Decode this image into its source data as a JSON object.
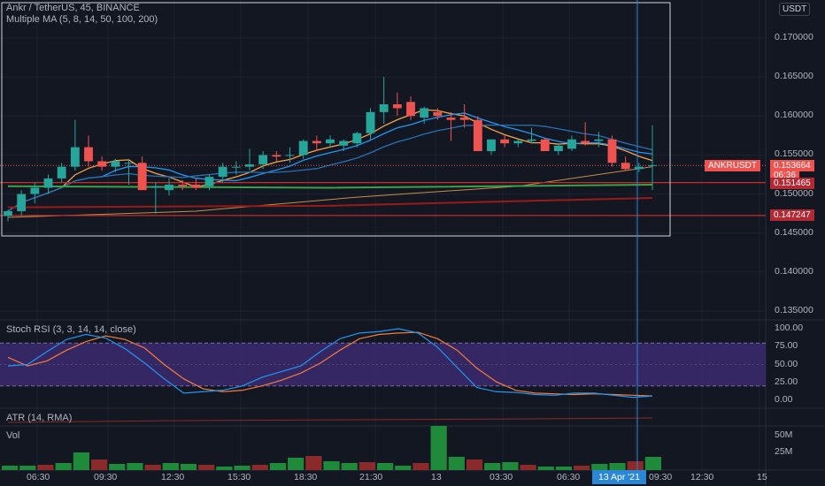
{
  "header": {
    "symbol_line": "Ankr / TetherUS, 45, BINANCE",
    "ma_line": "Multiple MA (5, 8, 14, 50, 100, 200)",
    "currency_btn": "USDT"
  },
  "price_axis": [
    "0.170000",
    "0.165000",
    "0.160000",
    "0.155000",
    "0.150000",
    "0.145000",
    "0.140000",
    "0.135000"
  ],
  "badges": {
    "symbol": "ANKRUSDT",
    "last_price": "0.153664",
    "countdown": "06:36",
    "level1": "0.151465",
    "level2": "0.147247"
  },
  "stoch": {
    "title": "Stoch RSI (3, 3, 14, 14, close)",
    "axis": [
      "100.00",
      "75.00",
      "50.00",
      "25.00",
      "0.00"
    ],
    "k": [
      48,
      50,
      68,
      85,
      92,
      87,
      72,
      52,
      30,
      10,
      12,
      14,
      20,
      32,
      40,
      48,
      68,
      86,
      94,
      96,
      100,
      94,
      74,
      46,
      18,
      12,
      11,
      8,
      7,
      10,
      10,
      7,
      4,
      6
    ],
    "d": [
      60,
      48,
      55,
      70,
      82,
      90,
      85,
      73,
      50,
      30,
      16,
      12,
      14,
      20,
      28,
      38,
      52,
      70,
      86,
      92,
      94,
      95,
      86,
      70,
      45,
      26,
      14,
      10,
      9,
      8,
      9,
      8,
      7,
      6
    ]
  },
  "atr": {
    "title": "ATR (14, RMA)"
  },
  "volume": {
    "title": "Vol",
    "axis": [
      "50M",
      "25M"
    ],
    "values": [
      5,
      5,
      6,
      8,
      20,
      12,
      7,
      8,
      6,
      8,
      7,
      6,
      4,
      5,
      6,
      8,
      14,
      16,
      10,
      8,
      9,
      8,
      5,
      8,
      50,
      15,
      12,
      8,
      9,
      6,
      4,
      4,
      5,
      7,
      8,
      10,
      15
    ]
  },
  "time_axis": [
    "06:30",
    "09:30",
    "12:30",
    "15:30",
    "18:30",
    "21:30",
    "13",
    "03:30",
    "06:30",
    "09:30",
    "12:30",
    "15"
  ],
  "cursor": {
    "label": "13 Apr '21"
  },
  "chart_data": {
    "type": "candlestick",
    "title": "Ankr / TetherUS, 45, BINANCE",
    "ylim": [
      0.1325,
      0.1735
    ],
    "candles": [
      {
        "o": 0.1472,
        "h": 0.148,
        "l": 0.1465,
        "c": 0.1478
      },
      {
        "o": 0.1478,
        "h": 0.1505,
        "l": 0.1472,
        "c": 0.15
      },
      {
        "o": 0.15,
        "h": 0.1515,
        "l": 0.1488,
        "c": 0.1508
      },
      {
        "o": 0.1508,
        "h": 0.1525,
        "l": 0.15,
        "c": 0.152
      },
      {
        "o": 0.152,
        "h": 0.154,
        "l": 0.1515,
        "c": 0.1535
      },
      {
        "o": 0.1535,
        "h": 0.1595,
        "l": 0.153,
        "c": 0.156
      },
      {
        "o": 0.156,
        "h": 0.1575,
        "l": 0.1535,
        "c": 0.1542
      },
      {
        "o": 0.1542,
        "h": 0.1548,
        "l": 0.153,
        "c": 0.1535
      },
      {
        "o": 0.1535,
        "h": 0.1545,
        "l": 0.1528,
        "c": 0.1542
      },
      {
        "o": 0.154,
        "h": 0.1545,
        "l": 0.1512,
        "c": 0.154
      },
      {
        "o": 0.154,
        "h": 0.1548,
        "l": 0.1505,
        "c": 0.1505
      },
      {
        "o": 0.1508,
        "h": 0.1515,
        "l": 0.1475,
        "c": 0.151
      },
      {
        "o": 0.1505,
        "h": 0.152,
        "l": 0.1498,
        "c": 0.1512
      },
      {
        "o": 0.1512,
        "h": 0.1518,
        "l": 0.1505,
        "c": 0.151
      },
      {
        "o": 0.1512,
        "h": 0.152,
        "l": 0.1505,
        "c": 0.1508
      },
      {
        "o": 0.151,
        "h": 0.1525,
        "l": 0.1505,
        "c": 0.1522
      },
      {
        "o": 0.1522,
        "h": 0.154,
        "l": 0.1515,
        "c": 0.1535
      },
      {
        "o": 0.1535,
        "h": 0.1542,
        "l": 0.1525,
        "c": 0.1535
      },
      {
        "o": 0.1535,
        "h": 0.1558,
        "l": 0.153,
        "c": 0.1538
      },
      {
        "o": 0.1538,
        "h": 0.1555,
        "l": 0.1532,
        "c": 0.155
      },
      {
        "o": 0.155,
        "h": 0.1555,
        "l": 0.1542,
        "c": 0.1548
      },
      {
        "o": 0.155,
        "h": 0.156,
        "l": 0.154,
        "c": 0.155
      },
      {
        "o": 0.155,
        "h": 0.157,
        "l": 0.1545,
        "c": 0.1568
      },
      {
        "o": 0.1568,
        "h": 0.1575,
        "l": 0.1555,
        "c": 0.1565
      },
      {
        "o": 0.1565,
        "h": 0.1575,
        "l": 0.156,
        "c": 0.157
      },
      {
        "o": 0.1562,
        "h": 0.157,
        "l": 0.1555,
        "c": 0.1568
      },
      {
        "o": 0.1565,
        "h": 0.158,
        "l": 0.156,
        "c": 0.1578
      },
      {
        "o": 0.1578,
        "h": 0.161,
        "l": 0.157,
        "c": 0.1605
      },
      {
        "o": 0.1605,
        "h": 0.165,
        "l": 0.159,
        "c": 0.1615
      },
      {
        "o": 0.1615,
        "h": 0.163,
        "l": 0.16,
        "c": 0.161
      },
      {
        "o": 0.1618,
        "h": 0.1625,
        "l": 0.1595,
        "c": 0.16
      },
      {
        "o": 0.1598,
        "h": 0.1612,
        "l": 0.159,
        "c": 0.161
      },
      {
        "o": 0.1605,
        "h": 0.161,
        "l": 0.1595,
        "c": 0.16
      },
      {
        "o": 0.1598,
        "h": 0.1605,
        "l": 0.1568,
        "c": 0.1595
      },
      {
        "o": 0.1598,
        "h": 0.1615,
        "l": 0.1585,
        "c": 0.1595
      },
      {
        "o": 0.1595,
        "h": 0.16,
        "l": 0.1555,
        "c": 0.1555
      },
      {
        "o": 0.1555,
        "h": 0.157,
        "l": 0.155,
        "c": 0.157
      },
      {
        "o": 0.157,
        "h": 0.1575,
        "l": 0.156,
        "c": 0.1565
      },
      {
        "o": 0.1565,
        "h": 0.157,
        "l": 0.156,
        "c": 0.1568
      },
      {
        "o": 0.1568,
        "h": 0.1585,
        "l": 0.1565,
        "c": 0.157
      },
      {
        "o": 0.157,
        "h": 0.1572,
        "l": 0.1555,
        "c": 0.1555
      },
      {
        "o": 0.1555,
        "h": 0.1565,
        "l": 0.155,
        "c": 0.1562
      },
      {
        "o": 0.1558,
        "h": 0.1575,
        "l": 0.1555,
        "c": 0.157
      },
      {
        "o": 0.1568,
        "h": 0.1592,
        "l": 0.1562,
        "c": 0.1565
      },
      {
        "o": 0.1568,
        "h": 0.158,
        "l": 0.156,
        "c": 0.157
      },
      {
        "o": 0.157,
        "h": 0.1575,
        "l": 0.1535,
        "c": 0.154
      },
      {
        "o": 0.154,
        "h": 0.1548,
        "l": 0.153,
        "c": 0.1532
      },
      {
        "o": 0.1532,
        "h": 0.154,
        "l": 0.1528,
        "c": 0.1535
      },
      {
        "o": 0.1536,
        "h": 0.1588,
        "l": 0.1505,
        "c": 0.1537
      }
    ],
    "horizontal_levels": [
      0.151465,
      0.147247
    ],
    "last_price": 0.153664
  }
}
